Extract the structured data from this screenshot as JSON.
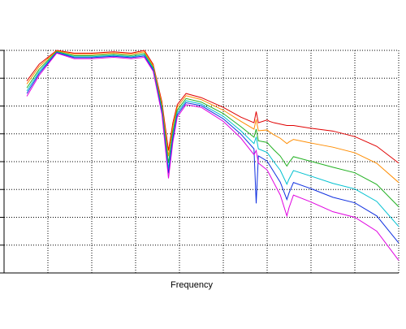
{
  "chart_data": {
    "type": "line",
    "x_label": "Frequency",
    "x": [
      0.52,
      0.8,
      1.2,
      1.6,
      2.0,
      2.5,
      2.9,
      3.2,
      3.4,
      3.6,
      3.75,
      3.85,
      3.95,
      4.15,
      4.5,
      5.0,
      5.4,
      5.7,
      5.75,
      5.8,
      6.0,
      6.05,
      6.15,
      6.3,
      6.45,
      6.5,
      6.6,
      7.0,
      7.5,
      8.0,
      8.5,
      9.0
    ],
    "series": [
      {
        "color": "#e00000",
        "values": [
          6.9,
          7.5,
          8.0,
          7.9,
          7.9,
          7.95,
          7.9,
          8.0,
          7.5,
          6.15,
          4.4,
          5.4,
          6.05,
          6.45,
          6.3,
          5.95,
          5.6,
          5.4,
          5.8,
          5.4,
          5.5,
          5.45,
          5.4,
          5.35,
          5.3,
          5.3,
          5.3,
          5.2,
          5.1,
          4.9,
          4.55,
          3.95
        ]
      },
      {
        "color": "#ff8c00",
        "values": [
          6.79,
          7.42,
          7.98,
          7.86,
          7.86,
          7.91,
          7.86,
          7.95,
          7.45,
          6.06,
          4.2,
          5.26,
          5.96,
          6.37,
          6.23,
          5.85,
          5.45,
          5.17,
          5.52,
          5.11,
          5.14,
          5.07,
          4.97,
          4.84,
          4.65,
          4.71,
          4.8,
          4.67,
          4.52,
          4.32,
          3.94,
          3.25
        ]
      },
      {
        "color": "#20b020",
        "values": [
          6.65,
          7.32,
          7.96,
          7.81,
          7.81,
          7.86,
          7.81,
          7.89,
          7.39,
          5.95,
          3.95,
          5.09,
          5.85,
          6.27,
          6.14,
          5.73,
          5.26,
          4.88,
          5.17,
          4.75,
          4.69,
          4.6,
          4.43,
          4.2,
          3.84,
          3.97,
          4.18,
          4.01,
          3.8,
          3.6,
          3.18,
          2.38
        ]
      },
      {
        "color": "#00c0d0",
        "values": [
          6.54,
          7.24,
          7.94,
          7.77,
          7.77,
          7.82,
          7.77,
          7.84,
          7.34,
          5.86,
          3.75,
          4.95,
          5.76,
          6.19,
          6.07,
          5.63,
          5.11,
          4.65,
          4.89,
          4.46,
          4.33,
          4.22,
          4.0,
          3.69,
          3.19,
          3.38,
          3.68,
          3.48,
          3.22,
          3.02,
          2.57,
          1.67
        ]
      },
      {
        "color": "#1030e0",
        "values": [
          6.45,
          7.17,
          7.92,
          7.74,
          7.74,
          7.79,
          7.74,
          7.8,
          7.3,
          5.78,
          3.58,
          4.83,
          5.68,
          6.12,
          6.01,
          5.54,
          4.99,
          4.46,
          2.5,
          4.21,
          4.02,
          3.89,
          3.64,
          3.26,
          2.64,
          2.88,
          3.25,
          3.03,
          2.72,
          2.52,
          2.05,
          1.08
        ]
      },
      {
        "color": "#e000e0",
        "values": [
          6.35,
          7.1,
          7.9,
          7.7,
          7.7,
          7.75,
          7.7,
          7.75,
          7.25,
          5.7,
          3.4,
          4.7,
          5.6,
          6.05,
          5.95,
          5.45,
          4.85,
          4.25,
          4.4,
          3.95,
          3.7,
          3.55,
          3.25,
          2.8,
          2.05,
          2.35,
          2.8,
          2.55,
          2.2,
          2.0,
          1.5,
          0.45
        ]
      }
    ],
    "xlim": [
      0,
      9
    ],
    "ylim": [
      0,
      8
    ],
    "xticks": [
      0,
      1,
      2,
      3,
      4,
      5,
      6,
      7,
      8,
      9
    ],
    "yticks": [
      0,
      1,
      2,
      3,
      4,
      5,
      6,
      7,
      8
    ],
    "grid": true
  }
}
